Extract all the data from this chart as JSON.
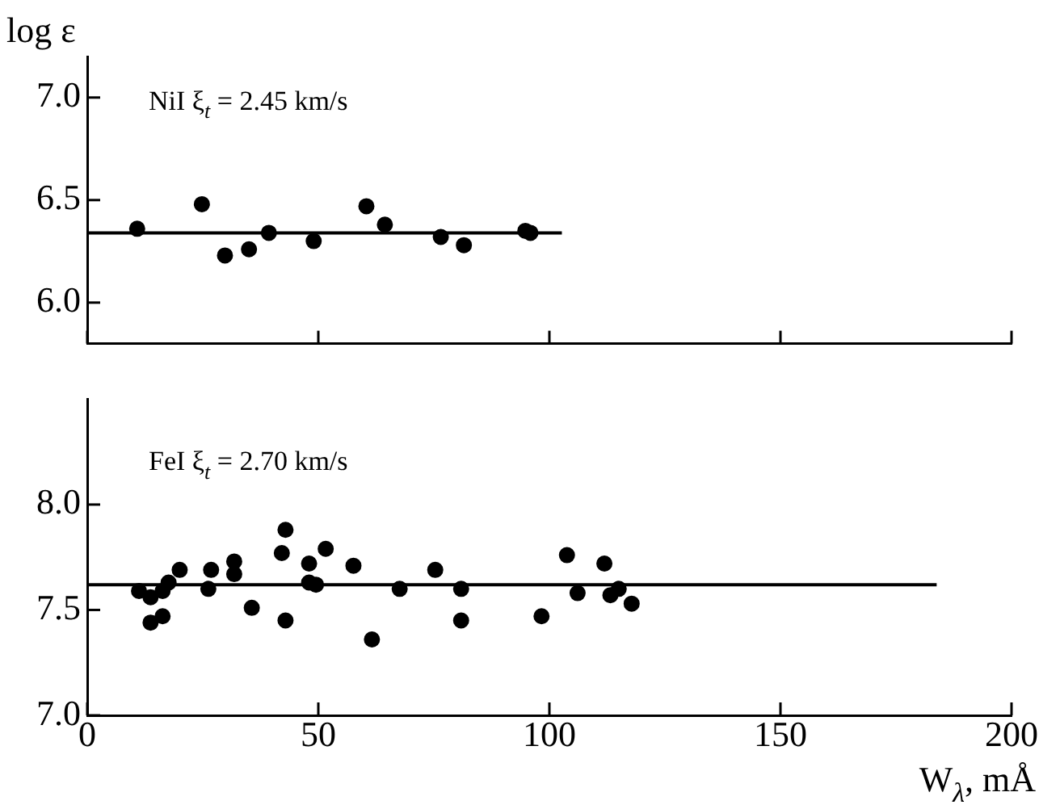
{
  "chart_data": [
    {
      "type": "scatter",
      "ylabel": "log ε",
      "annotations": [
        "NiI ξ$_{t}$ = 2.45 km/s"
      ],
      "xlim": [
        0,
        200
      ],
      "xticks": [
        0,
        50,
        100,
        150,
        200
      ],
      "ylim": [
        5.8,
        7.2
      ],
      "yticks": [
        {
          "value": 6,
          "label": "6.0"
        },
        {
          "value": 6.5,
          "label": "6.5"
        },
        {
          "value": 7,
          "label": "7.0"
        }
      ],
      "tick_labels": "y",
      "series": [
        {
          "marker": "circle",
          "color": "#000000",
          "x": [
            10.8,
            24.8,
            29.8,
            35,
            39.3,
            49,
            60.4,
            64.4,
            76.5,
            81.5,
            94.8,
            95.9
          ],
          "values": [
            6.36,
            6.48,
            6.23,
            6.26,
            6.34,
            6.3,
            6.47,
            6.38,
            6.32,
            6.28,
            6.35,
            6.34
          ]
        },
        {
          "type": "line",
          "color": "#000000",
          "x": [
            0,
            102.7
          ],
          "values": [
            6.34,
            6.34
          ]
        }
      ]
    },
    {
      "type": "scatter",
      "xlabel": "W$_{λ}$, mÅ",
      "annotations": [
        "FeI ξ$_{t}$ = 2.70 km/s"
      ],
      "xlim": [
        0,
        200
      ],
      "xticks": [
        0,
        50,
        100,
        150,
        200
      ],
      "ylim": [
        7.0,
        8.5
      ],
      "yticks": [
        {
          "value": 7,
          "label": "7.0"
        },
        {
          "value": 7.5,
          "label": "7.5"
        },
        {
          "value": 8,
          "label": "8.0"
        }
      ],
      "series": [
        {
          "marker": "circle",
          "color": "#000000",
          "x": [
            11.2,
            13.7,
            13.7,
            16.3,
            16.3,
            17.6,
            20,
            26.2,
            26.8,
            31.8,
            31.8,
            35.6,
            42.1,
            42.9,
            42.9,
            48,
            48,
            49.5,
            51.6,
            57.6,
            61.6,
            67.6,
            75.3,
            80.9,
            80.9,
            98.3,
            103.8,
            106.1,
            111.9,
            113.2,
            115,
            117.8
          ],
          "values": [
            7.59,
            7.56,
            7.44,
            7.59,
            7.47,
            7.63,
            7.69,
            7.6,
            7.69,
            7.73,
            7.67,
            7.51,
            7.77,
            7.88,
            7.45,
            7.72,
            7.63,
            7.62,
            7.79,
            7.71,
            7.36,
            7.6,
            7.69,
            7.6,
            7.45,
            7.47,
            7.76,
            7.58,
            7.72,
            7.57,
            7.6,
            7.53
          ]
        },
        {
          "type": "line",
          "color": "#000000",
          "x": [
            0,
            183.8
          ],
          "values": [
            7.62,
            7.62
          ]
        }
      ]
    }
  ]
}
